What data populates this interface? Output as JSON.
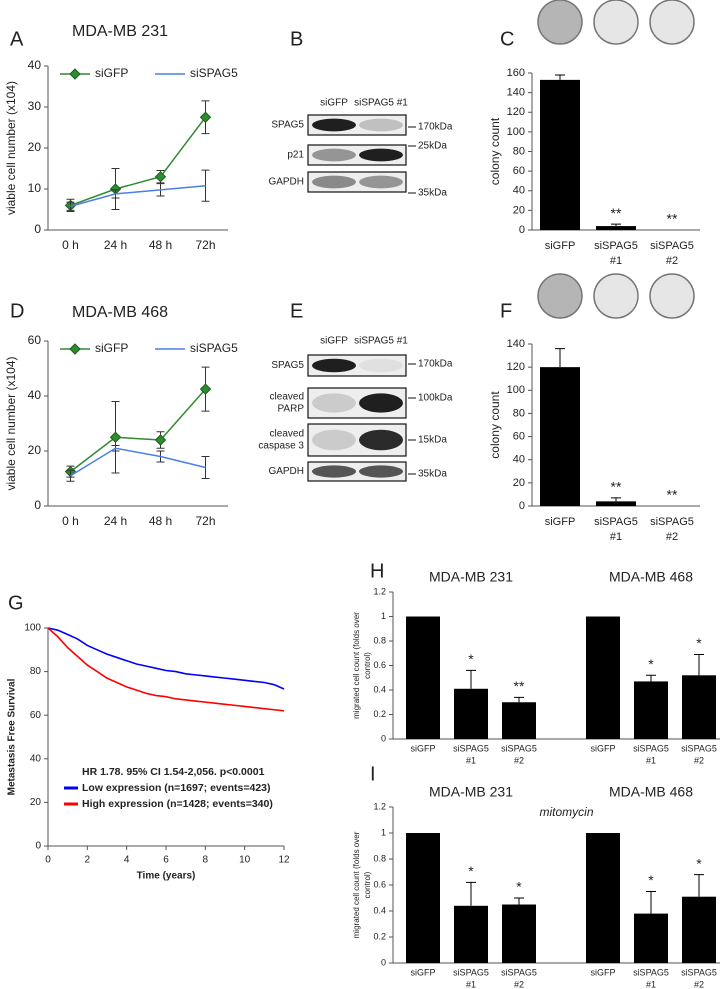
{
  "chart_data": [
    {
      "type": "line",
      "panel": "A",
      "title": "MDA-MB 231",
      "ylabel": "viable cell number (x104)",
      "categories": [
        "0 h",
        "24 h",
        "48 h",
        "72h"
      ],
      "series": [
        {
          "name": "siGFP",
          "color": "#2e8b2e",
          "marker": "diamond",
          "values": [
            6,
            10,
            13,
            27.5
          ],
          "errors": [
            1.5,
            5,
            1.5,
            4
          ]
        },
        {
          "name": "siSPAG5",
          "color": "#4a7fe8",
          "values": [
            5.8,
            8.8,
            9.8,
            10.8
          ],
          "errors": [
            1,
            1,
            1.5,
            3.8
          ]
        }
      ],
      "ylim": [
        0,
        40
      ],
      "yticks": [
        0,
        10,
        20,
        30,
        40
      ],
      "legend": "top"
    },
    {
      "type": "blot",
      "panel": "B",
      "lanes": [
        "siGFP",
        "siSPAG5 #1"
      ],
      "rows": [
        [
          "SPAG5"
        ],
        [
          "p21"
        ],
        [
          "GAPDH"
        ]
      ],
      "markers": [
        "170kDa",
        "25kDa",
        "35kDa"
      ]
    },
    {
      "type": "bar",
      "panel": "C",
      "ylabel": "colony count",
      "categories": [
        [
          "siGFP"
        ],
        [
          "siSPAG5",
          "#1"
        ],
        [
          "siSPAG5",
          "#2"
        ]
      ],
      "values": [
        153,
        4,
        0
      ],
      "errors": [
        5,
        2,
        null
      ],
      "annotations": [
        null,
        "**",
        "**"
      ],
      "color": "#000000",
      "ylim": [
        0,
        160
      ],
      "yticks": [
        0,
        20,
        40,
        60,
        80,
        100,
        120,
        140,
        160
      ]
    },
    {
      "type": "line",
      "panel": "D",
      "title": "MDA-MB 468",
      "ylabel": "viable cell number (x104)",
      "categories": [
        "0 h",
        "24 h",
        "48 h",
        "72h"
      ],
      "series": [
        {
          "name": "siGFP",
          "color": "#2e8b2e",
          "marker": "diamond",
          "values": [
            12.5,
            25,
            24,
            42.5
          ],
          "errors": [
            2,
            13,
            3,
            8
          ]
        },
        {
          "name": "siSPAG5",
          "color": "#4a7fe8",
          "values": [
            11,
            21,
            18,
            14
          ],
          "errors": [
            2,
            1,
            2,
            4
          ]
        }
      ],
      "ylim": [
        0,
        60
      ],
      "yticks": [
        0,
        20,
        40,
        60
      ],
      "legend": "top"
    },
    {
      "type": "blot",
      "panel": "E",
      "lanes": [
        "siGFP",
        "siSPAG5 #1"
      ],
      "rows": [
        [
          "SPAG5"
        ],
        [
          "cleaved",
          "PARP"
        ],
        [
          "cleaved",
          "caspase 3"
        ],
        [
          "GAPDH"
        ]
      ],
      "markers": [
        "170kDa",
        "100kDa",
        "15kDa",
        "35kDa"
      ]
    },
    {
      "type": "bar",
      "panel": "F",
      "ylabel": "colony count",
      "categories": [
        [
          "siGFP"
        ],
        [
          "siSPAG5",
          "#1"
        ],
        [
          "siSPAG5",
          "#2"
        ]
      ],
      "values": [
        120,
        4,
        0
      ],
      "errors": [
        16,
        3,
        null
      ],
      "annotations": [
        null,
        "**",
        "**"
      ],
      "color": "#000000",
      "ylim": [
        0,
        140
      ],
      "yticks": [
        0,
        20,
        40,
        60,
        80,
        100,
        120,
        140
      ]
    },
    {
      "type": "line",
      "panel": "G",
      "ylabel": "Metastasis Free Survival",
      "xlabel": "Time (years)",
      "annotation": "HR 1.78. 95% CI 1.54-2,056. p<0.0001",
      "x": [
        0,
        0.5,
        1,
        1.5,
        2,
        2.5,
        3,
        3.5,
        4,
        4.5,
        5,
        5.5,
        6,
        6.5,
        7,
        7.5,
        8,
        8.5,
        9,
        9.5,
        10,
        10.5,
        11,
        11.5,
        12
      ],
      "series": [
        {
          "name": "Low expression (n=1697; events=423)",
          "color": "#0000ff",
          "values": [
            100,
            99,
            97,
            95,
            92,
            90,
            88,
            86.5,
            85,
            83.5,
            82.5,
            81.5,
            80.5,
            80,
            79,
            78.5,
            78,
            77.5,
            77,
            76.5,
            76,
            75.5,
            75,
            74,
            72
          ]
        },
        {
          "name": "High expression (n=1428; events=340)",
          "color": "#ff0000",
          "values": [
            100,
            96,
            91,
            87,
            83,
            80,
            77,
            75,
            73,
            71.5,
            70,
            69,
            68.5,
            67.5,
            67,
            66.5,
            66,
            65.5,
            65,
            64.5,
            64,
            63.5,
            63,
            62.5,
            62
          ]
        }
      ],
      "xlim": [
        0,
        12
      ],
      "xticks": [
        0,
        2,
        4,
        6,
        8,
        10,
        12
      ],
      "ylim": [
        0,
        100
      ],
      "yticks": [
        0,
        20,
        40,
        60,
        80,
        100
      ],
      "legend": "lower left"
    },
    {
      "type": "bar",
      "panel": "H",
      "ylabel": [
        "migrated cell count (folds over",
        "control)"
      ],
      "groups": [
        "MDA-MB 231",
        "MDA-MB 468"
      ],
      "categories": [
        [
          "siGFP"
        ],
        [
          "siSPAG5",
          "#1"
        ],
        [
          "siSPAG5",
          "#2"
        ]
      ],
      "values": [
        [
          1,
          0.41,
          0.3
        ],
        [
          1,
          0.47,
          0.52
        ]
      ],
      "errors": [
        [
          null,
          0.15,
          0.04
        ],
        [
          null,
          0.05,
          0.17
        ]
      ],
      "annotations": [
        [
          null,
          "*",
          "**"
        ],
        [
          null,
          "*",
          "*"
        ]
      ],
      "color": "#000000",
      "ylim": [
        0,
        1.2
      ],
      "yticks": [
        0,
        0.2,
        0.4,
        0.6,
        0.8,
        1,
        1.2
      ]
    },
    {
      "type": "bar",
      "panel": "I",
      "subtitle": "mitomycin",
      "ylabel": [
        "migrated cell count (folds over",
        "control)"
      ],
      "groups": [
        "MDA-MB 231",
        "MDA-MB 468"
      ],
      "categories": [
        [
          "siGFP"
        ],
        [
          "siSPAG5",
          "#1"
        ],
        [
          "siSPAG5",
          "#2"
        ]
      ],
      "values": [
        [
          1,
          0.44,
          0.45
        ],
        [
          1,
          0.38,
          0.51
        ]
      ],
      "errors": [
        [
          null,
          0.18,
          0.05
        ],
        [
          null,
          0.17,
          0.17
        ]
      ],
      "annotations": [
        [
          null,
          "*",
          "*"
        ],
        [
          null,
          "*",
          "*"
        ]
      ],
      "color": "#000000",
      "ylim": [
        0,
        1.2
      ],
      "yticks": [
        0,
        0.2,
        0.4,
        0.6,
        0.8,
        1,
        1.2
      ]
    }
  ]
}
